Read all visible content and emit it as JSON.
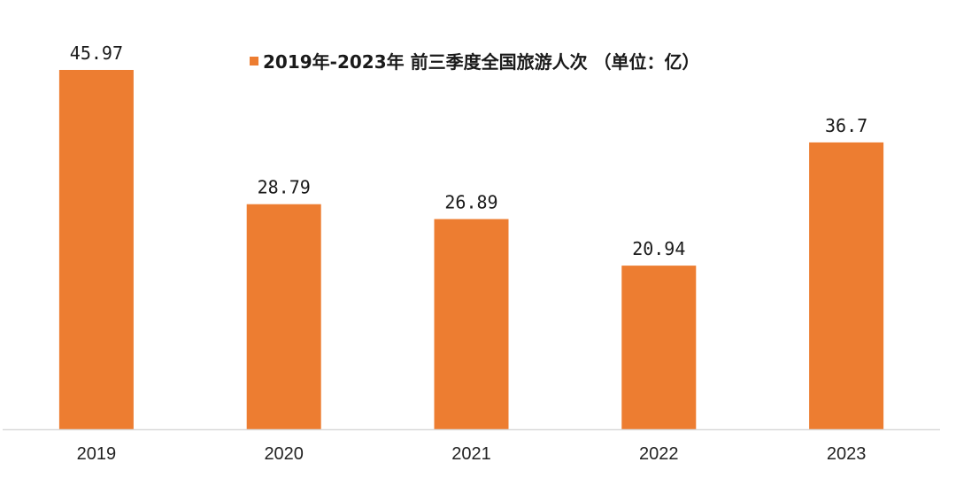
{
  "chart_data": {
    "type": "bar",
    "categories": [
      "2019",
      "2020",
      "2021",
      "2022",
      "2023"
    ],
    "series": [
      {
        "name": "2019年-2023年 前三季度全国旅游人次 （单位：亿）",
        "values": [
          45.97,
          28.79,
          26.89,
          20.94,
          36.7
        ],
        "labels": [
          "45.97",
          "28.79",
          "26.89",
          "20.94",
          "36.7"
        ]
      }
    ],
    "ylim": [
      0,
      50
    ],
    "grid": false,
    "legend_position": "top-center",
    "bar_color": "#ED7D31",
    "axis_color": "#d9d9d9"
  }
}
